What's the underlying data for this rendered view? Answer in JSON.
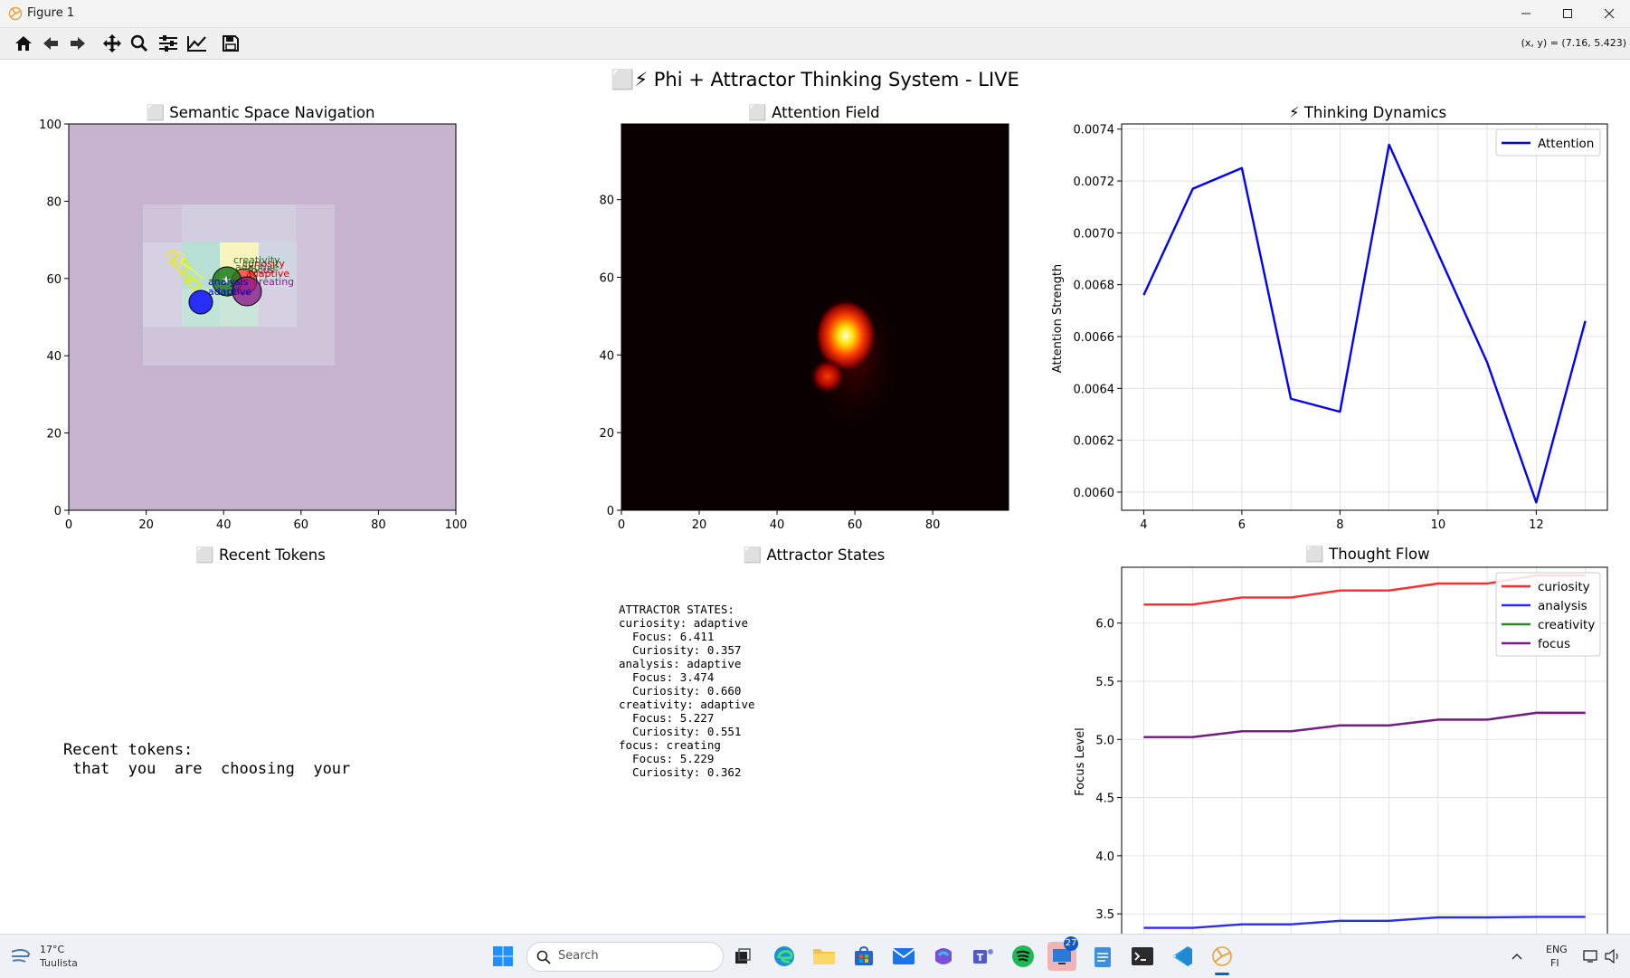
{
  "window": {
    "title": "Figure 1"
  },
  "toolbar": {
    "buttons": [
      "home-icon",
      "back-icon",
      "forward-icon",
      "pan-icon",
      "zoom-icon",
      "configure-subplots-icon",
      "edit-axis-icon",
      "save-icon"
    ],
    "coords": "(x, y) = (7.16, 5.423)"
  },
  "figure": {
    "suptitle": "⬜⚡ Phi + Attractor Thinking System - LIVE",
    "semantic": {
      "title": "⬜ Semantic Space Navigation",
      "xticks": [
        "0",
        "20",
        "40",
        "60",
        "80",
        "100"
      ],
      "yticks": [
        "0",
        "20",
        "40",
        "60",
        "80",
        "100"
      ],
      "labels": [
        "creativity",
        "curiosity",
        "analysis",
        "focus",
        "adaptive",
        "adaptive",
        "adaptive",
        "creating"
      ]
    },
    "attention_field": {
      "title": "⬜ Attention Field",
      "xticks": [
        "0",
        "20",
        "40",
        "60",
        "80"
      ],
      "yticks": [
        "0",
        "20",
        "40",
        "60",
        "80"
      ]
    },
    "tokens": {
      "title": "⬜ Recent Tokens",
      "line1": "Recent tokens:",
      "line2": " that  you  are  choosing  your"
    },
    "attractors": {
      "title": "⬜ Attractor States",
      "lines": [
        "ATTRACTOR STATES:",
        "curiosity: adaptive",
        "  Focus: 6.411",
        "  Curiosity: 0.357",
        "analysis: adaptive",
        "  Focus: 3.474",
        "  Curiosity: 0.660",
        "creativity: adaptive",
        "  Focus: 5.227",
        "  Curiosity: 0.551",
        "focus: creating",
        "  Focus: 5.229",
        "  Curiosity: 0.362"
      ]
    }
  },
  "chart_data": [
    {
      "type": "line",
      "title": "⚡ Thinking Dynamics",
      "xlabel": "",
      "ylabel": "Attention Strength",
      "x": [
        4,
        5,
        6,
        7,
        8,
        9,
        10,
        11,
        12,
        13
      ],
      "series": [
        {
          "name": "Attention",
          "color": "#0000ff",
          "values": [
            0.00676,
            0.00717,
            0.00725,
            0.00636,
            0.00631,
            0.00734,
            0.00692,
            0.0065,
            0.00596,
            0.00666
          ]
        }
      ],
      "xlim": [
        3.55,
        13.45
      ],
      "ylim": [
        0.00593,
        0.00742
      ],
      "xticks": [
        4,
        6,
        8,
        10,
        12
      ],
      "yticks": [
        "0.0060",
        "0.0062",
        "0.0064",
        "0.0066",
        "0.0068",
        "0.0070",
        "0.0072",
        "0.0074"
      ],
      "ytick_values": [
        0.006,
        0.0062,
        0.0064,
        0.0066,
        0.0068,
        0.007,
        0.0072,
        0.0074
      ],
      "legend": "top-right",
      "grid": true
    },
    {
      "type": "line",
      "title": "⬜ Thought Flow",
      "xlabel": "",
      "ylabel": "Focus Level",
      "x": [
        4,
        5,
        6,
        7,
        8,
        9,
        10,
        11,
        12,
        13
      ],
      "series": [
        {
          "name": "curiosity",
          "color": "#ff2a2a",
          "values": [
            6.16,
            6.16,
            6.22,
            6.22,
            6.28,
            6.28,
            6.34,
            6.34,
            6.41,
            6.41
          ]
        },
        {
          "name": "analysis",
          "color": "#2a2aff",
          "values": [
            3.38,
            3.38,
            3.41,
            3.41,
            3.44,
            3.44,
            3.47,
            3.47,
            3.474,
            3.474
          ]
        },
        {
          "name": "creativity",
          "color": "#2a8a2a",
          "values": [
            5.02,
            5.02,
            5.07,
            5.07,
            5.12,
            5.12,
            5.17,
            5.17,
            5.227,
            5.227
          ]
        },
        {
          "name": "focus",
          "color": "#7a1a8a",
          "values": [
            5.02,
            5.02,
            5.07,
            5.07,
            5.12,
            5.12,
            5.17,
            5.17,
            5.229,
            5.229
          ]
        }
      ],
      "xlim": [
        3.55,
        13.45
      ],
      "ylim": [
        3.33,
        6.48
      ],
      "yticks": [
        "3.5",
        "4.0",
        "4.5",
        "5.0",
        "5.5",
        "6.0"
      ],
      "ytick_values": [
        3.5,
        4.0,
        4.5,
        5.0,
        5.5,
        6.0
      ],
      "legend": "top-right",
      "grid": true
    }
  ],
  "taskbar": {
    "weather_temp": "17°C",
    "weather_desc": "Tuulista",
    "search_placeholder": "Search",
    "lang1": "ENG",
    "lang2": "FI",
    "badge": "27",
    "accent": "#0067c0"
  }
}
